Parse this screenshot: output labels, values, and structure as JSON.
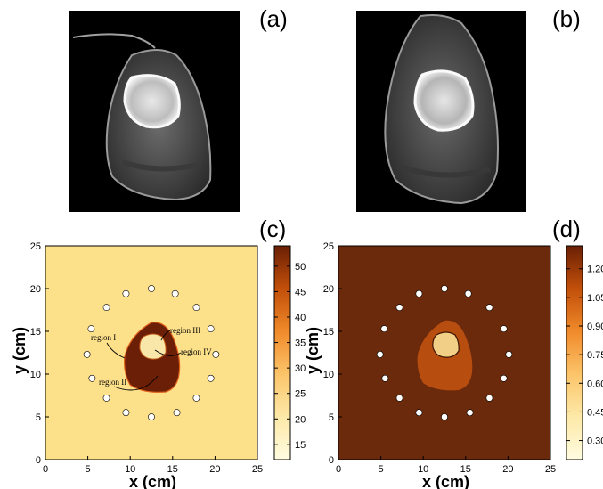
{
  "panels": {
    "a": "(a)",
    "b": "(b)",
    "c": "(c)",
    "d": "(d)"
  },
  "colors": {
    "background_c": "#fde08a",
    "tissue_c": "#6b1f06",
    "bone_c": "#f8e7a8",
    "background_d": "#6b2a0c",
    "tissue_d": "#b84d10",
    "bone_d": "#f2cf87",
    "sensor": "#ffffff"
  },
  "annotations_c": [
    "region I",
    "region II",
    "region III",
    "region IV"
  ],
  "chart_data": [
    {
      "type": "heatmap",
      "panel": "(c)",
      "xlabel": "x (cm)",
      "ylabel": "y (cm)",
      "xlim": [
        0,
        25
      ],
      "ylim": [
        0,
        25
      ],
      "xticks": [
        0,
        5,
        10,
        15,
        20,
        25
      ],
      "yticks": [
        0,
        5,
        10,
        15,
        20,
        25
      ],
      "colorbar": {
        "min": 12,
        "max": 54,
        "ticks": [
          15,
          20,
          25,
          30,
          35,
          40,
          45,
          50
        ],
        "colormap": "YlOrBr"
      },
      "regions": [
        {
          "label": "region I",
          "value": 53
        },
        {
          "label": "region II",
          "value": 53
        },
        {
          "label": "region III",
          "value": 13
        },
        {
          "label": "region IV",
          "value": 13
        }
      ],
      "background_value": 21
    },
    {
      "type": "heatmap",
      "panel": "(d)",
      "xlabel": "x (cm)",
      "ylabel": "y (cm)",
      "xlim": [
        0,
        25
      ],
      "ylim": [
        0,
        25
      ],
      "xticks": [
        0,
        5,
        10,
        15,
        20,
        25
      ],
      "yticks": [
        0,
        5,
        10,
        15,
        20,
        25
      ],
      "colorbar": {
        "min": 0.2,
        "max": 1.32,
        "ticks": [
          0.3,
          0.45,
          0.6,
          0.75,
          0.9,
          1.05,
          1.2
        ],
        "colormap": "YlOrBr"
      },
      "background_value": 1.25,
      "tissue_value": 0.95,
      "bone_value": 0.45
    }
  ],
  "sensors_cm": [
    [
      12.5,
      20.0
    ],
    [
      15.3,
      19.4
    ],
    [
      17.8,
      17.8
    ],
    [
      19.5,
      15.3
    ],
    [
      20.1,
      12.3
    ],
    [
      19.5,
      9.5
    ],
    [
      17.8,
      7.2
    ],
    [
      15.5,
      5.5
    ],
    [
      12.5,
      5.0
    ],
    [
      9.5,
      5.5
    ],
    [
      7.2,
      7.2
    ],
    [
      5.5,
      9.5
    ],
    [
      4.9,
      12.3
    ],
    [
      5.4,
      15.3
    ],
    [
      7.2,
      17.8
    ],
    [
      9.5,
      19.4
    ]
  ]
}
